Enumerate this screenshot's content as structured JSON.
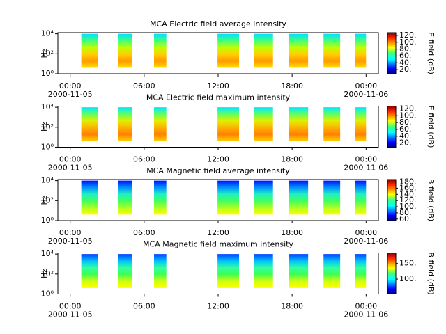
{
  "chart_data": [
    {
      "type": "spectrogram",
      "title": "MCA  Electric field average intensity",
      "ylabel": "Hz",
      "xlim": [
        -1,
        25
      ],
      "xticks": [
        {
          "value": 0,
          "label": "00:00"
        },
        {
          "value": 6,
          "label": "06:00"
        },
        {
          "value": 12,
          "label": "12:00"
        },
        {
          "value": 18,
          "label": "18:00"
        },
        {
          "value": 24,
          "label": "00:00"
        }
      ],
      "x_date_labels": [
        {
          "value": 0,
          "label": "2000-11-05"
        },
        {
          "value": 24,
          "label": "2000-11-06"
        }
      ],
      "ylim": [
        1,
        13000
      ],
      "log_y": true,
      "yticks": [
        {
          "value": 1,
          "label": "10⁰"
        },
        {
          "value": 100,
          "label": "10²"
        },
        {
          "value": 10000,
          "label": "10⁴"
        }
      ],
      "flim": [
        4,
        10000
      ],
      "colors": [
        "#00e0ff",
        "#40ff80",
        "#c0ff00",
        "#ffd000",
        "#ff9a00",
        "#ffe000"
      ],
      "segments": [
        {
          "start": 0.9,
          "end": 2.25
        },
        {
          "start": 3.9,
          "end": 5.0
        },
        {
          "start": 6.8,
          "end": 7.8
        },
        {
          "start": 11.95,
          "end": 13.7
        },
        {
          "start": 14.9,
          "end": 16.45
        },
        {
          "start": 17.75,
          "end": 19.3
        },
        {
          "start": 20.55,
          "end": 21.9
        },
        {
          "start": 23.1,
          "end": 24.0
        }
      ],
      "colorbar": {
        "label": "E field (dB)",
        "lim": [
          8,
          128
        ],
        "ticks": [
          {
            "value": 20,
            "label": "20."
          },
          {
            "value": 40,
            "label": "40."
          },
          {
            "value": 60,
            "label": "60."
          },
          {
            "value": 80,
            "label": "80."
          },
          {
            "value": 100,
            "label": "100."
          },
          {
            "value": 120,
            "label": "120."
          }
        ]
      }
    },
    {
      "type": "spectrogram",
      "title": "MCA  Electric field maximum intensity",
      "ylabel": "Hz",
      "xlim": [
        -1,
        25
      ],
      "xticks": [
        {
          "value": 0,
          "label": "00:00"
        },
        {
          "value": 6,
          "label": "06:00"
        },
        {
          "value": 12,
          "label": "12:00"
        },
        {
          "value": 18,
          "label": "18:00"
        },
        {
          "value": 24,
          "label": "00:00"
        }
      ],
      "x_date_labels": [
        {
          "value": 0,
          "label": "2000-11-05"
        },
        {
          "value": 24,
          "label": "2000-11-06"
        }
      ],
      "ylim": [
        1,
        13000
      ],
      "log_y": true,
      "yticks": [
        {
          "value": 1,
          "label": "10⁰"
        },
        {
          "value": 100,
          "label": "10²"
        },
        {
          "value": 10000,
          "label": "10⁴"
        }
      ],
      "flim": [
        4,
        10000
      ],
      "colors": [
        "#00e8ff",
        "#60ff60",
        "#e0f000",
        "#ffb000",
        "#ff8000",
        "#ffd000"
      ],
      "segments": [
        {
          "start": 0.9,
          "end": 2.25
        },
        {
          "start": 3.9,
          "end": 5.0
        },
        {
          "start": 6.8,
          "end": 7.8
        },
        {
          "start": 11.95,
          "end": 13.7
        },
        {
          "start": 14.9,
          "end": 16.45
        },
        {
          "start": 17.75,
          "end": 19.3
        },
        {
          "start": 20.55,
          "end": 21.9
        },
        {
          "start": 23.1,
          "end": 24.0
        }
      ],
      "colorbar": {
        "label": "E field (dB)",
        "lim": [
          8,
          128
        ],
        "ticks": [
          {
            "value": 20,
            "label": "20."
          },
          {
            "value": 40,
            "label": "40."
          },
          {
            "value": 60,
            "label": "60."
          },
          {
            "value": 80,
            "label": "80."
          },
          {
            "value": 100,
            "label": "100."
          },
          {
            "value": 120,
            "label": "120."
          }
        ]
      }
    },
    {
      "type": "spectrogram",
      "title": "MCA  Magnetic field average intensity",
      "ylabel": "Hz",
      "xlim": [
        -1,
        25
      ],
      "xticks": [
        {
          "value": 0,
          "label": "00:00"
        },
        {
          "value": 6,
          "label": "06:00"
        },
        {
          "value": 12,
          "label": "12:00"
        },
        {
          "value": 18,
          "label": "18:00"
        },
        {
          "value": 24,
          "label": "00:00"
        }
      ],
      "x_date_labels": [
        {
          "value": 0,
          "label": "2000-11-05"
        },
        {
          "value": 24,
          "label": "2000-11-06"
        }
      ],
      "ylim": [
        1,
        13000
      ],
      "log_y": true,
      "yticks": [
        {
          "value": 1,
          "label": "10⁰"
        },
        {
          "value": 100,
          "label": "10²"
        },
        {
          "value": 10000,
          "label": "10⁴"
        }
      ],
      "flim": [
        4,
        10000
      ],
      "colors": [
        "#0010ff",
        "#0090ff",
        "#20f0c0",
        "#40ff60",
        "#b0ff20",
        "#ffff00"
      ],
      "segments": [
        {
          "start": 0.9,
          "end": 2.25
        },
        {
          "start": 3.9,
          "end": 5.0
        },
        {
          "start": 6.8,
          "end": 7.8
        },
        {
          "start": 11.95,
          "end": 13.7
        },
        {
          "start": 14.9,
          "end": 16.45
        },
        {
          "start": 17.75,
          "end": 19.3
        },
        {
          "start": 20.55,
          "end": 21.9
        },
        {
          "start": 23.1,
          "end": 24.0
        }
      ],
      "colorbar": {
        "label": "B field (dB)",
        "lim": [
          55,
          188
        ],
        "ticks": [
          {
            "value": 60,
            "label": "60."
          },
          {
            "value": 80,
            "label": "80."
          },
          {
            "value": 100,
            "label": "100."
          },
          {
            "value": 120,
            "label": "120."
          },
          {
            "value": 140,
            "label": "140."
          },
          {
            "value": 160,
            "label": "160."
          },
          {
            "value": 180,
            "label": "180."
          }
        ]
      }
    },
    {
      "type": "spectrogram",
      "title": "MCA  Magnetic field maximum intensity",
      "ylabel": "Hz",
      "xlim": [
        -1,
        25
      ],
      "xticks": [
        {
          "value": 0,
          "label": "00:00"
        },
        {
          "value": 6,
          "label": "06:00"
        },
        {
          "value": 12,
          "label": "12:00"
        },
        {
          "value": 18,
          "label": "18:00"
        },
        {
          "value": 24,
          "label": "00:00"
        }
      ],
      "x_date_labels": [
        {
          "value": 0,
          "label": "2000-11-05"
        },
        {
          "value": 24,
          "label": "2000-11-06"
        }
      ],
      "ylim": [
        1,
        13000
      ],
      "log_y": true,
      "yticks": [
        {
          "value": 1,
          "label": "10⁰"
        },
        {
          "value": 100,
          "label": "10²"
        },
        {
          "value": 10000,
          "label": "10⁴"
        }
      ],
      "flim": [
        4,
        10000
      ],
      "colors": [
        "#0040ff",
        "#00c0ff",
        "#30ffa0",
        "#40ff50",
        "#d0ff10",
        "#ffff00"
      ],
      "segments": [
        {
          "start": 0.9,
          "end": 2.25
        },
        {
          "start": 3.9,
          "end": 5.0
        },
        {
          "start": 6.8,
          "end": 7.8
        },
        {
          "start": 11.95,
          "end": 13.7
        },
        {
          "start": 14.9,
          "end": 16.45
        },
        {
          "start": 17.75,
          "end": 19.3
        },
        {
          "start": 20.55,
          "end": 21.9
        },
        {
          "start": 23.1,
          "end": 24.0
        }
      ],
      "colorbar": {
        "label": "B field (dB)",
        "lim": [
          52,
          184
        ],
        "ticks": [
          {
            "value": 100,
            "label": "100."
          },
          {
            "value": 150,
            "label": "150."
          }
        ]
      }
    }
  ]
}
